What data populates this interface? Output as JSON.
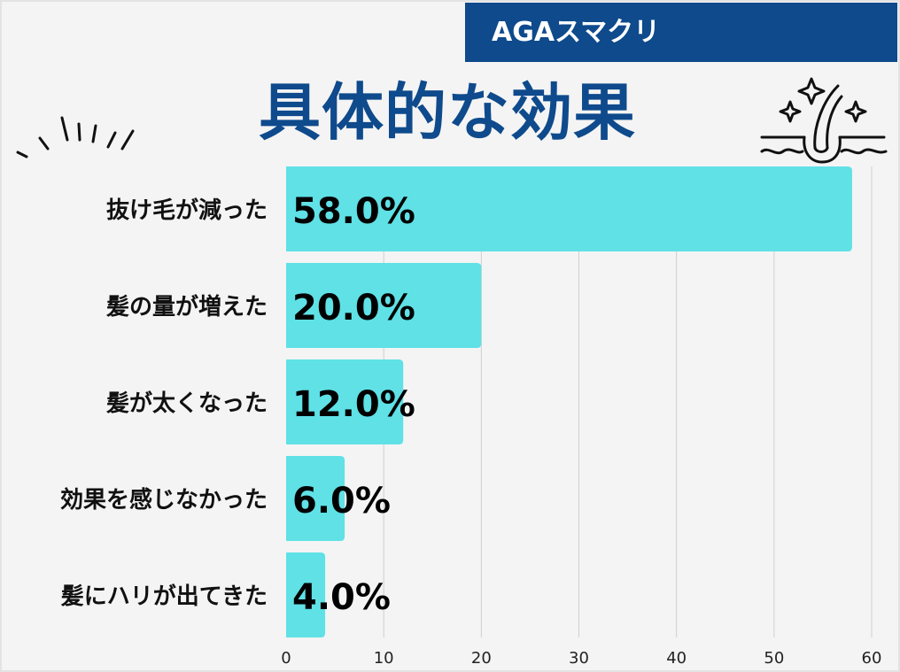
{
  "brand": {
    "label": "AGAスマクリ"
  },
  "heading": {
    "title": "具体的な効果"
  },
  "colors": {
    "accent": "#0e4a8c",
    "bar": "#5fe1e6",
    "grid": "#cfcfcf",
    "background": "#f4f4f4"
  },
  "icons": [
    "burst-lines-icon",
    "hair-follicle-sparkle-icon"
  ],
  "chart_data": {
    "type": "bar",
    "orientation": "horizontal",
    "categories": [
      "抜け毛が減った",
      "髪の量が増えた",
      "髪が太くなった",
      "効果を感じなかった",
      "髪にハリが出てきた"
    ],
    "values": [
      58.0,
      20.0,
      12.0,
      6.0,
      4.0
    ],
    "value_labels": [
      "58.0%",
      "20.0%",
      "12.0%",
      "6.0%",
      "4.0%"
    ],
    "xlim": [
      0,
      60
    ],
    "xticks": [
      0,
      10,
      20,
      30,
      40,
      50,
      60
    ],
    "grid": true,
    "legend": "none",
    "title": "具体的な効果"
  }
}
